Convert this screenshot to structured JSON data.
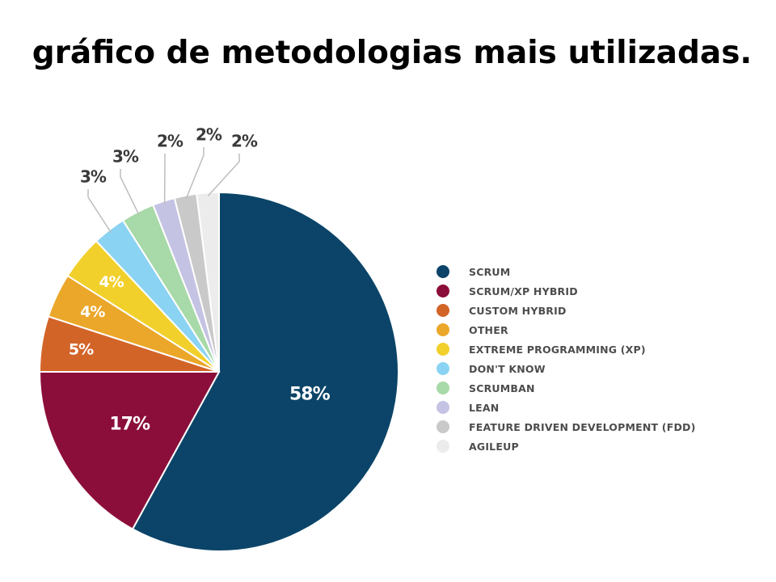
{
  "title": "gráfico de metodologias mais utilizadas.",
  "chart_data": {
    "type": "pie",
    "categories": [
      "SCRUM",
      "SCRUM/XP HYBRID",
      "CUSTOM HYBRID",
      "OTHER",
      "EXTREME PROGRAMMING (XP)",
      "DON'T KNOW",
      "SCRUMBAN",
      "LEAN",
      "FEATURE DRIVEN DEVELOPMENT (FDD)",
      "AGILEUP"
    ],
    "values": [
      58,
      17,
      5,
      4,
      4,
      3,
      3,
      2,
      2,
      2
    ],
    "labels": [
      "58%",
      "17%",
      "5%",
      "4%",
      "4%",
      "3%",
      "3%",
      "2%",
      "2%",
      "2%"
    ],
    "colors": [
      "#0b4468",
      "#8b0e3a",
      "#d36428",
      "#eba729",
      "#f2d02b",
      "#8bd3f2",
      "#a8d9a8",
      "#c5c3e3",
      "#c9c9c9",
      "#ececec"
    ],
    "start_angle_deg": 0,
    "direction": "clockwise",
    "legend": "right",
    "title": "gráfico de metodologias mais utilizadas."
  }
}
